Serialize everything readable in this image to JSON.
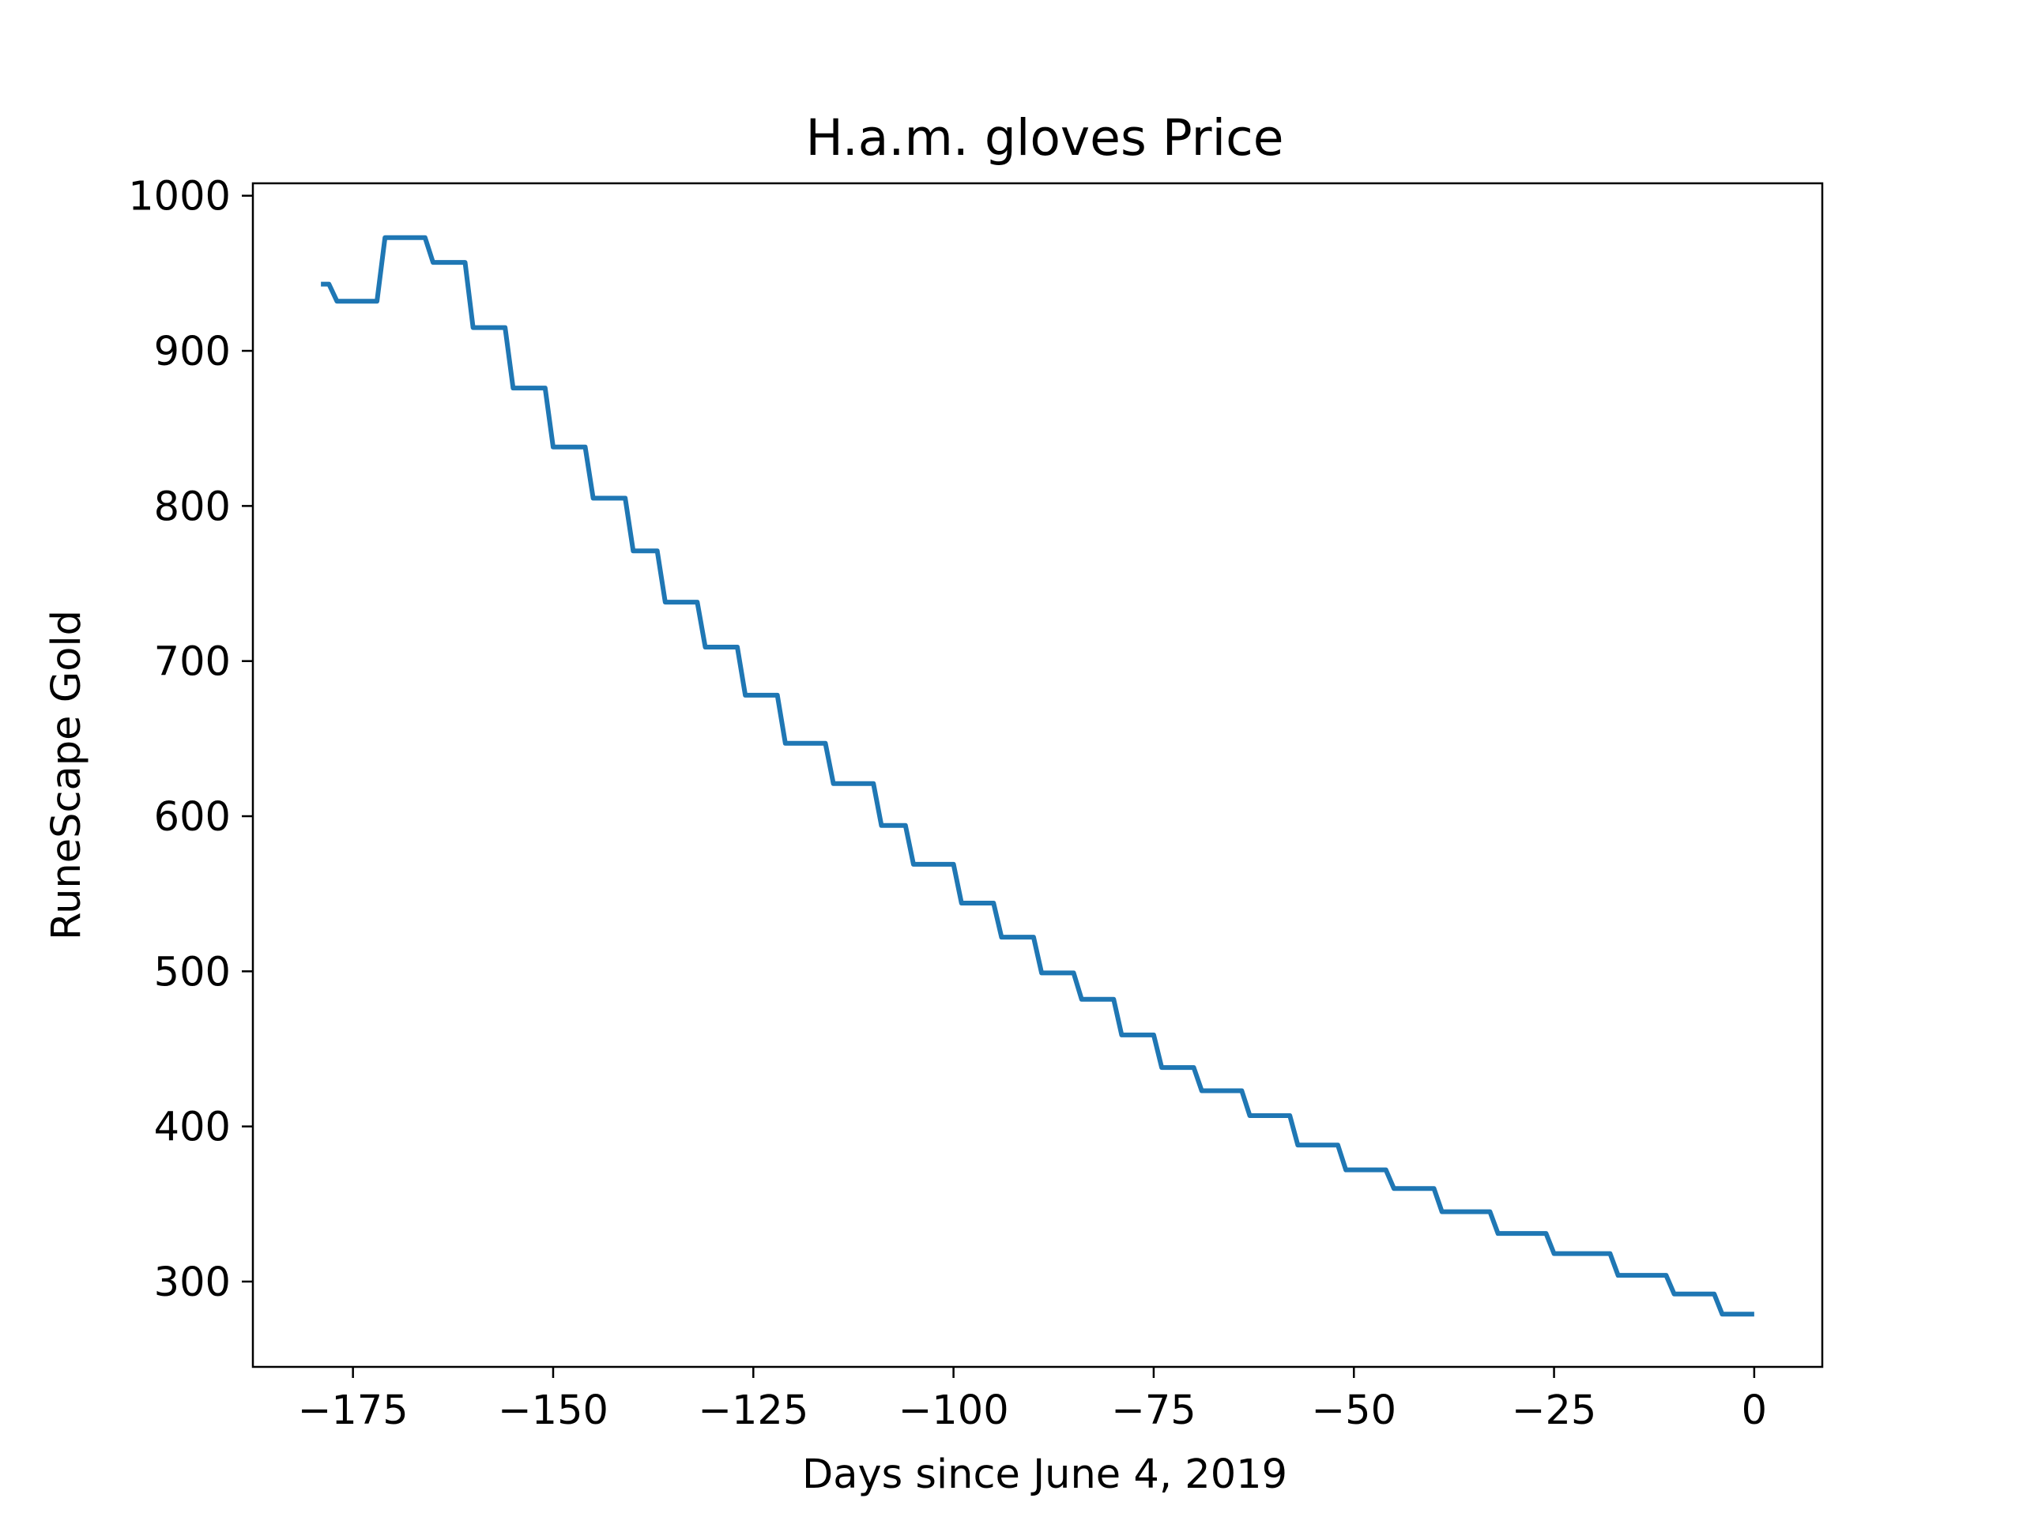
{
  "chart_data": {
    "type": "line",
    "title": "H.a.m. gloves Price",
    "xlabel": "Days since June 4, 2019",
    "ylabel": "RuneScape Gold",
    "xlim": [
      -187.5,
      8.5
    ],
    "ylim": [
      245,
      1008
    ],
    "xticks": [
      -175,
      -150,
      -125,
      -100,
      -75,
      -50,
      -25,
      0
    ],
    "xtick_labels": [
      "−175",
      "−150",
      "−125",
      "−100",
      "−75",
      "−50",
      "−25",
      "0"
    ],
    "yticks": [
      300,
      400,
      500,
      600,
      700,
      800,
      900,
      1000
    ],
    "ytick_labels": [
      "300",
      "400",
      "500",
      "600",
      "700",
      "800",
      "900",
      "1000"
    ],
    "grid": false,
    "legend": "none",
    "series": [
      {
        "color": "#1f77b4",
        "points": [
          [
            -179,
            943
          ],
          [
            -178,
            943
          ],
          [
            -177,
            932
          ],
          [
            -172,
            932
          ],
          [
            -171,
            973
          ],
          [
            -166,
            973
          ],
          [
            -165,
            957
          ],
          [
            -161,
            957
          ],
          [
            -160,
            915
          ],
          [
            -156,
            915
          ],
          [
            -155,
            876
          ],
          [
            -151,
            876
          ],
          [
            -150,
            838
          ],
          [
            -146,
            838
          ],
          [
            -145,
            805
          ],
          [
            -141,
            805
          ],
          [
            -140,
            771
          ],
          [
            -137,
            771
          ],
          [
            -136,
            738
          ],
          [
            -132,
            738
          ],
          [
            -131,
            709
          ],
          [
            -127,
            709
          ],
          [
            -126,
            678
          ],
          [
            -122,
            678
          ],
          [
            -121,
            647
          ],
          [
            -116,
            647
          ],
          [
            -115,
            621
          ],
          [
            -110,
            621
          ],
          [
            -109,
            594
          ],
          [
            -106,
            594
          ],
          [
            -105,
            569
          ],
          [
            -100,
            569
          ],
          [
            -99,
            544
          ],
          [
            -95,
            544
          ],
          [
            -94,
            522
          ],
          [
            -90,
            522
          ],
          [
            -89,
            499
          ],
          [
            -85,
            499
          ],
          [
            -84,
            482
          ],
          [
            -80,
            482
          ],
          [
            -79,
            459
          ],
          [
            -75,
            459
          ],
          [
            -74,
            438
          ],
          [
            -70,
            438
          ],
          [
            -69,
            423
          ],
          [
            -64,
            423
          ],
          [
            -63,
            407
          ],
          [
            -58,
            407
          ],
          [
            -57,
            388
          ],
          [
            -52,
            388
          ],
          [
            -51,
            372
          ],
          [
            -46,
            372
          ],
          [
            -45,
            360
          ],
          [
            -40,
            360
          ],
          [
            -39,
            345
          ],
          [
            -33,
            345
          ],
          [
            -32,
            331
          ],
          [
            -26,
            331
          ],
          [
            -25,
            318
          ],
          [
            -18,
            318
          ],
          [
            -17,
            304
          ],
          [
            -11,
            304
          ],
          [
            -10,
            292
          ],
          [
            -5,
            292
          ],
          [
            -4,
            279
          ],
          [
            0,
            279
          ]
        ]
      }
    ]
  }
}
